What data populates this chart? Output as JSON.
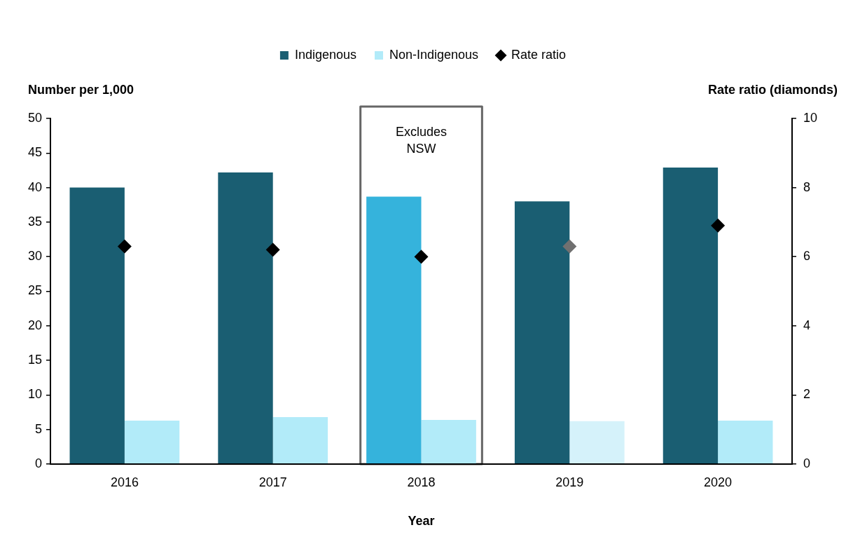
{
  "chart_data": {
    "type": "bar",
    "categories": [
      "2016",
      "2017",
      "2018",
      "2019",
      "2020"
    ],
    "xlabel": "Year",
    "ylabel": "Number per 1,000",
    "y2label": "Rate ratio (diamonds)",
    "series": [
      {
        "name": "Indigenous",
        "color": "#1a5e72",
        "colors": [
          "#1a5e72",
          "#1a5e72",
          "#35b3dc",
          "#1a5e72",
          "#1a5e72"
        ],
        "values": [
          40.0,
          42.2,
          38.7,
          38.0,
          42.9
        ]
      },
      {
        "name": "Non-Indigenous",
        "color": "#b2ebf9",
        "colors": [
          "#b2ebf9",
          "#b2ebf9",
          "#b2ebf9",
          "#d5f2fa",
          "#b2ebf9"
        ],
        "values": [
          6.3,
          6.8,
          6.4,
          6.2,
          6.3
        ]
      },
      {
        "name": "Rate ratio",
        "type": "scatter",
        "axis": "y2",
        "marker": "diamond",
        "color": "#000000",
        "colors": [
          "#000000",
          "#000000",
          "#000000",
          "#707070",
          "#000000"
        ],
        "values": [
          6.3,
          6.2,
          6.0,
          6.3,
          6.9
        ]
      }
    ],
    "ylim": [
      0,
      50
    ],
    "yticks": [
      0,
      5,
      10,
      15,
      20,
      25,
      30,
      35,
      40,
      45,
      50
    ],
    "y2lim": [
      0,
      10
    ],
    "y2ticks": [
      0,
      2,
      4,
      6,
      8,
      10
    ],
    "legend": "top",
    "bands": [
      {
        "axis": "x",
        "from": "2018",
        "to": "2018",
        "label": "Excludes NSW",
        "color": "#666666"
      }
    ]
  }
}
